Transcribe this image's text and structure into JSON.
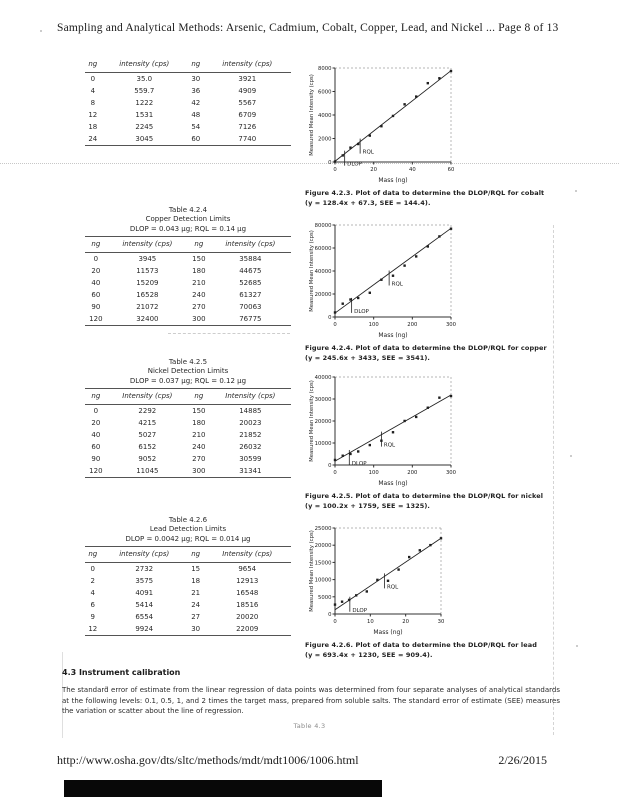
{
  "page": {
    "header": "Sampling and Analytical Methods: Arsenic, Cadmium, Cobalt, Copper, Lead, and Nickel ... Page 8 of 13",
    "section_heading": "4.3 Instrument calibration",
    "section_paragraph": "The standard error of estimate from the linear regression of data points was determined from four separate analyses of analytical standards at the following levels: 0.1, 0.5, 1, and 2 times the target mass, prepared from soluble salts. The standard error of estimate (SEE) measures the variation or scatter about the line of regression.",
    "continuation_note": "Table 4.3",
    "footer_url": "http://www.osha.gov/dts/sltc/methods/mdt/mdt1006/1006.html",
    "footer_date": "2/26/2015"
  },
  "tables": [
    {
      "id": "cobalt-data",
      "title_lines": [],
      "headers": [
        "ng",
        "intensity (cps)",
        "ng",
        "intensity (cps)"
      ],
      "rows": [
        [
          "0",
          "35.0",
          "30",
          "3921"
        ],
        [
          "4",
          "559.7",
          "36",
          "4909"
        ],
        [
          "8",
          "1222",
          "42",
          "5567"
        ],
        [
          "12",
          "1531",
          "48",
          "6709"
        ],
        [
          "18",
          "2245",
          "54",
          "7126"
        ],
        [
          "24",
          "3045",
          "60",
          "7740"
        ]
      ]
    },
    {
      "id": "copper-detection-limits",
      "title_lines": [
        "Table 4.2.4",
        "Copper Detection Limits",
        "DLOP = 0.043 µg; RQL = 0.14 µg"
      ],
      "headers": [
        "ng",
        "intensity (cps)",
        "ng",
        "intensity (cps)"
      ],
      "rows": [
        [
          "0",
          "3945",
          "150",
          "35884"
        ],
        [
          "20",
          "11573",
          "180",
          "44675"
        ],
        [
          "40",
          "15209",
          "210",
          "52685"
        ],
        [
          "60",
          "16528",
          "240",
          "61327"
        ],
        [
          "90",
          "21072",
          "270",
          "70063"
        ],
        [
          "120",
          "32400",
          "300",
          "76775"
        ]
      ]
    },
    {
      "id": "nickel-detection-limits",
      "title_lines": [
        "Table 4.2.5",
        "Nickel Detection Limits",
        "DLOP = 0.037 µg; RQL = 0.12 µg"
      ],
      "headers": [
        "ng",
        "Intensity (cps)",
        "ng",
        "Intensity (cps)"
      ],
      "rows": [
        [
          "0",
          "2292",
          "150",
          "14885"
        ],
        [
          "20",
          "4215",
          "180",
          "20023"
        ],
        [
          "40",
          "5027",
          "210",
          "21852"
        ],
        [
          "60",
          "6152",
          "240",
          "26032"
        ],
        [
          "90",
          "9052",
          "270",
          "30599"
        ],
        [
          "120",
          "11045",
          "300",
          "31341"
        ]
      ]
    },
    {
      "id": "lead-detection-limits",
      "title_lines": [
        "Table 4.2.6",
        "Lead Detection Limits",
        "DLOP = 0.0042 µg; RQL = 0.014 µg"
      ],
      "headers": [
        "ng",
        "intensity (cps)",
        "ng",
        "Intensity (cps)"
      ],
      "rows": [
        [
          "0",
          "2732",
          "15",
          "9654"
        ],
        [
          "2",
          "3575",
          "18",
          "12913"
        ],
        [
          "4",
          "4091",
          "21",
          "16548"
        ],
        [
          "6",
          "5414",
          "24",
          "18516"
        ],
        [
          "9",
          "6554",
          "27",
          "20020"
        ],
        [
          "12",
          "9924",
          "30",
          "22009"
        ]
      ]
    }
  ],
  "chart_data": [
    {
      "type": "scatter",
      "x": [
        0,
        4,
        8,
        12,
        18,
        24,
        30,
        36,
        42,
        48,
        54,
        60
      ],
      "y": [
        35,
        559.7,
        1222,
        1531,
        2245,
        3045,
        3921,
        4909,
        5567,
        6709,
        7126,
        7740
      ],
      "xlabel": "Mass (ng)",
      "ylabel": "Measured Mean Intensity (cps)",
      "xlim": [
        0,
        60
      ],
      "ylim": [
        0,
        8000
      ],
      "xticks": [
        0,
        20,
        40,
        60
      ],
      "yticks": [
        0,
        2000,
        4000,
        6000,
        8000
      ],
      "fit": {
        "slope": 128.4,
        "intercept": 67.3
      },
      "annotations": [
        {
          "label": "DLOP",
          "x": 5
        },
        {
          "label": "RQL",
          "x": 13
        }
      ],
      "caption": "Figure 4.2.3. Plot of data to determine the DLOP/RQL for cobalt",
      "caption2": "(y = 128.4x + 67.3, SEE = 144.4)."
    },
    {
      "type": "scatter",
      "x": [
        0,
        20,
        40,
        60,
        90,
        120,
        150,
        180,
        210,
        240,
        270,
        300
      ],
      "y": [
        3945,
        11573,
        15209,
        16528,
        21072,
        32400,
        35884,
        44675,
        52685,
        61327,
        70063,
        76775
      ],
      "xlabel": "Mass (ng)",
      "ylabel": "Measured Mean Intensity (cps)",
      "xlim": [
        0,
        300
      ],
      "ylim": [
        0,
        80000
      ],
      "xticks": [
        0,
        100,
        200,
        300
      ],
      "yticks": [
        0,
        20000,
        40000,
        60000,
        80000
      ],
      "fit": {
        "slope": 245.6,
        "intercept": 3433
      },
      "annotations": [
        {
          "label": "DLOP",
          "x": 43
        },
        {
          "label": "RQL",
          "x": 140
        }
      ],
      "caption": "Figure 4.2.4. Plot of data to determine the DLOP/RQL for copper",
      "caption2": "(y = 245.6x + 3433, SEE = 3541)."
    },
    {
      "type": "scatter",
      "x": [
        0,
        20,
        40,
        60,
        90,
        120,
        150,
        180,
        210,
        240,
        270,
        300
      ],
      "y": [
        2292,
        4215,
        5027,
        6152,
        9052,
        11045,
        14885,
        20023,
        21852,
        26032,
        30599,
        31341
      ],
      "xlabel": "Mass (ng)",
      "ylabel": "Measured Mean Intensity (cps)",
      "xlim": [
        0,
        300
      ],
      "ylim": [
        0,
        40000
      ],
      "xticks": [
        0,
        100,
        200,
        300
      ],
      "yticks": [
        0,
        10000,
        20000,
        30000,
        40000
      ],
      "fit": {
        "slope": 100.2,
        "intercept": 1759
      },
      "annotations": [
        {
          "label": "DLOP",
          "x": 37
        },
        {
          "label": "RQL",
          "x": 120
        }
      ],
      "caption": "Figure 4.2.5. Plot of data to determine the DLOP/RQL for nickel",
      "caption2": "(y = 100.2x + 1759, SEE = 1325)."
    },
    {
      "type": "scatter",
      "x": [
        0,
        2,
        4,
        6,
        9,
        12,
        15,
        18,
        21,
        24,
        27,
        30
      ],
      "y": [
        2732,
        3575,
        4091,
        5414,
        6554,
        9924,
        9654,
        12913,
        16548,
        18516,
        20020,
        22009
      ],
      "xlabel": "Mass (ng)",
      "ylabel": "Measured Mean Intensity (cps)",
      "xlim": [
        0,
        30
      ],
      "ylim": [
        0,
        25000
      ],
      "xticks": [
        0,
        10,
        20,
        30
      ],
      "yticks": [
        0,
        5000,
        10000,
        15000,
        20000,
        25000
      ],
      "fit": {
        "slope": 693.4,
        "intercept": 1230
      },
      "annotations": [
        {
          "label": "DLOP",
          "x": 4.2
        },
        {
          "label": "RQL",
          "x": 14
        }
      ],
      "caption": "Figure 4.2.6. Plot of data to determine the DLOP/RQL for lead",
      "caption2": "(y = 693.4x + 1230, SEE = 909.4)."
    }
  ]
}
